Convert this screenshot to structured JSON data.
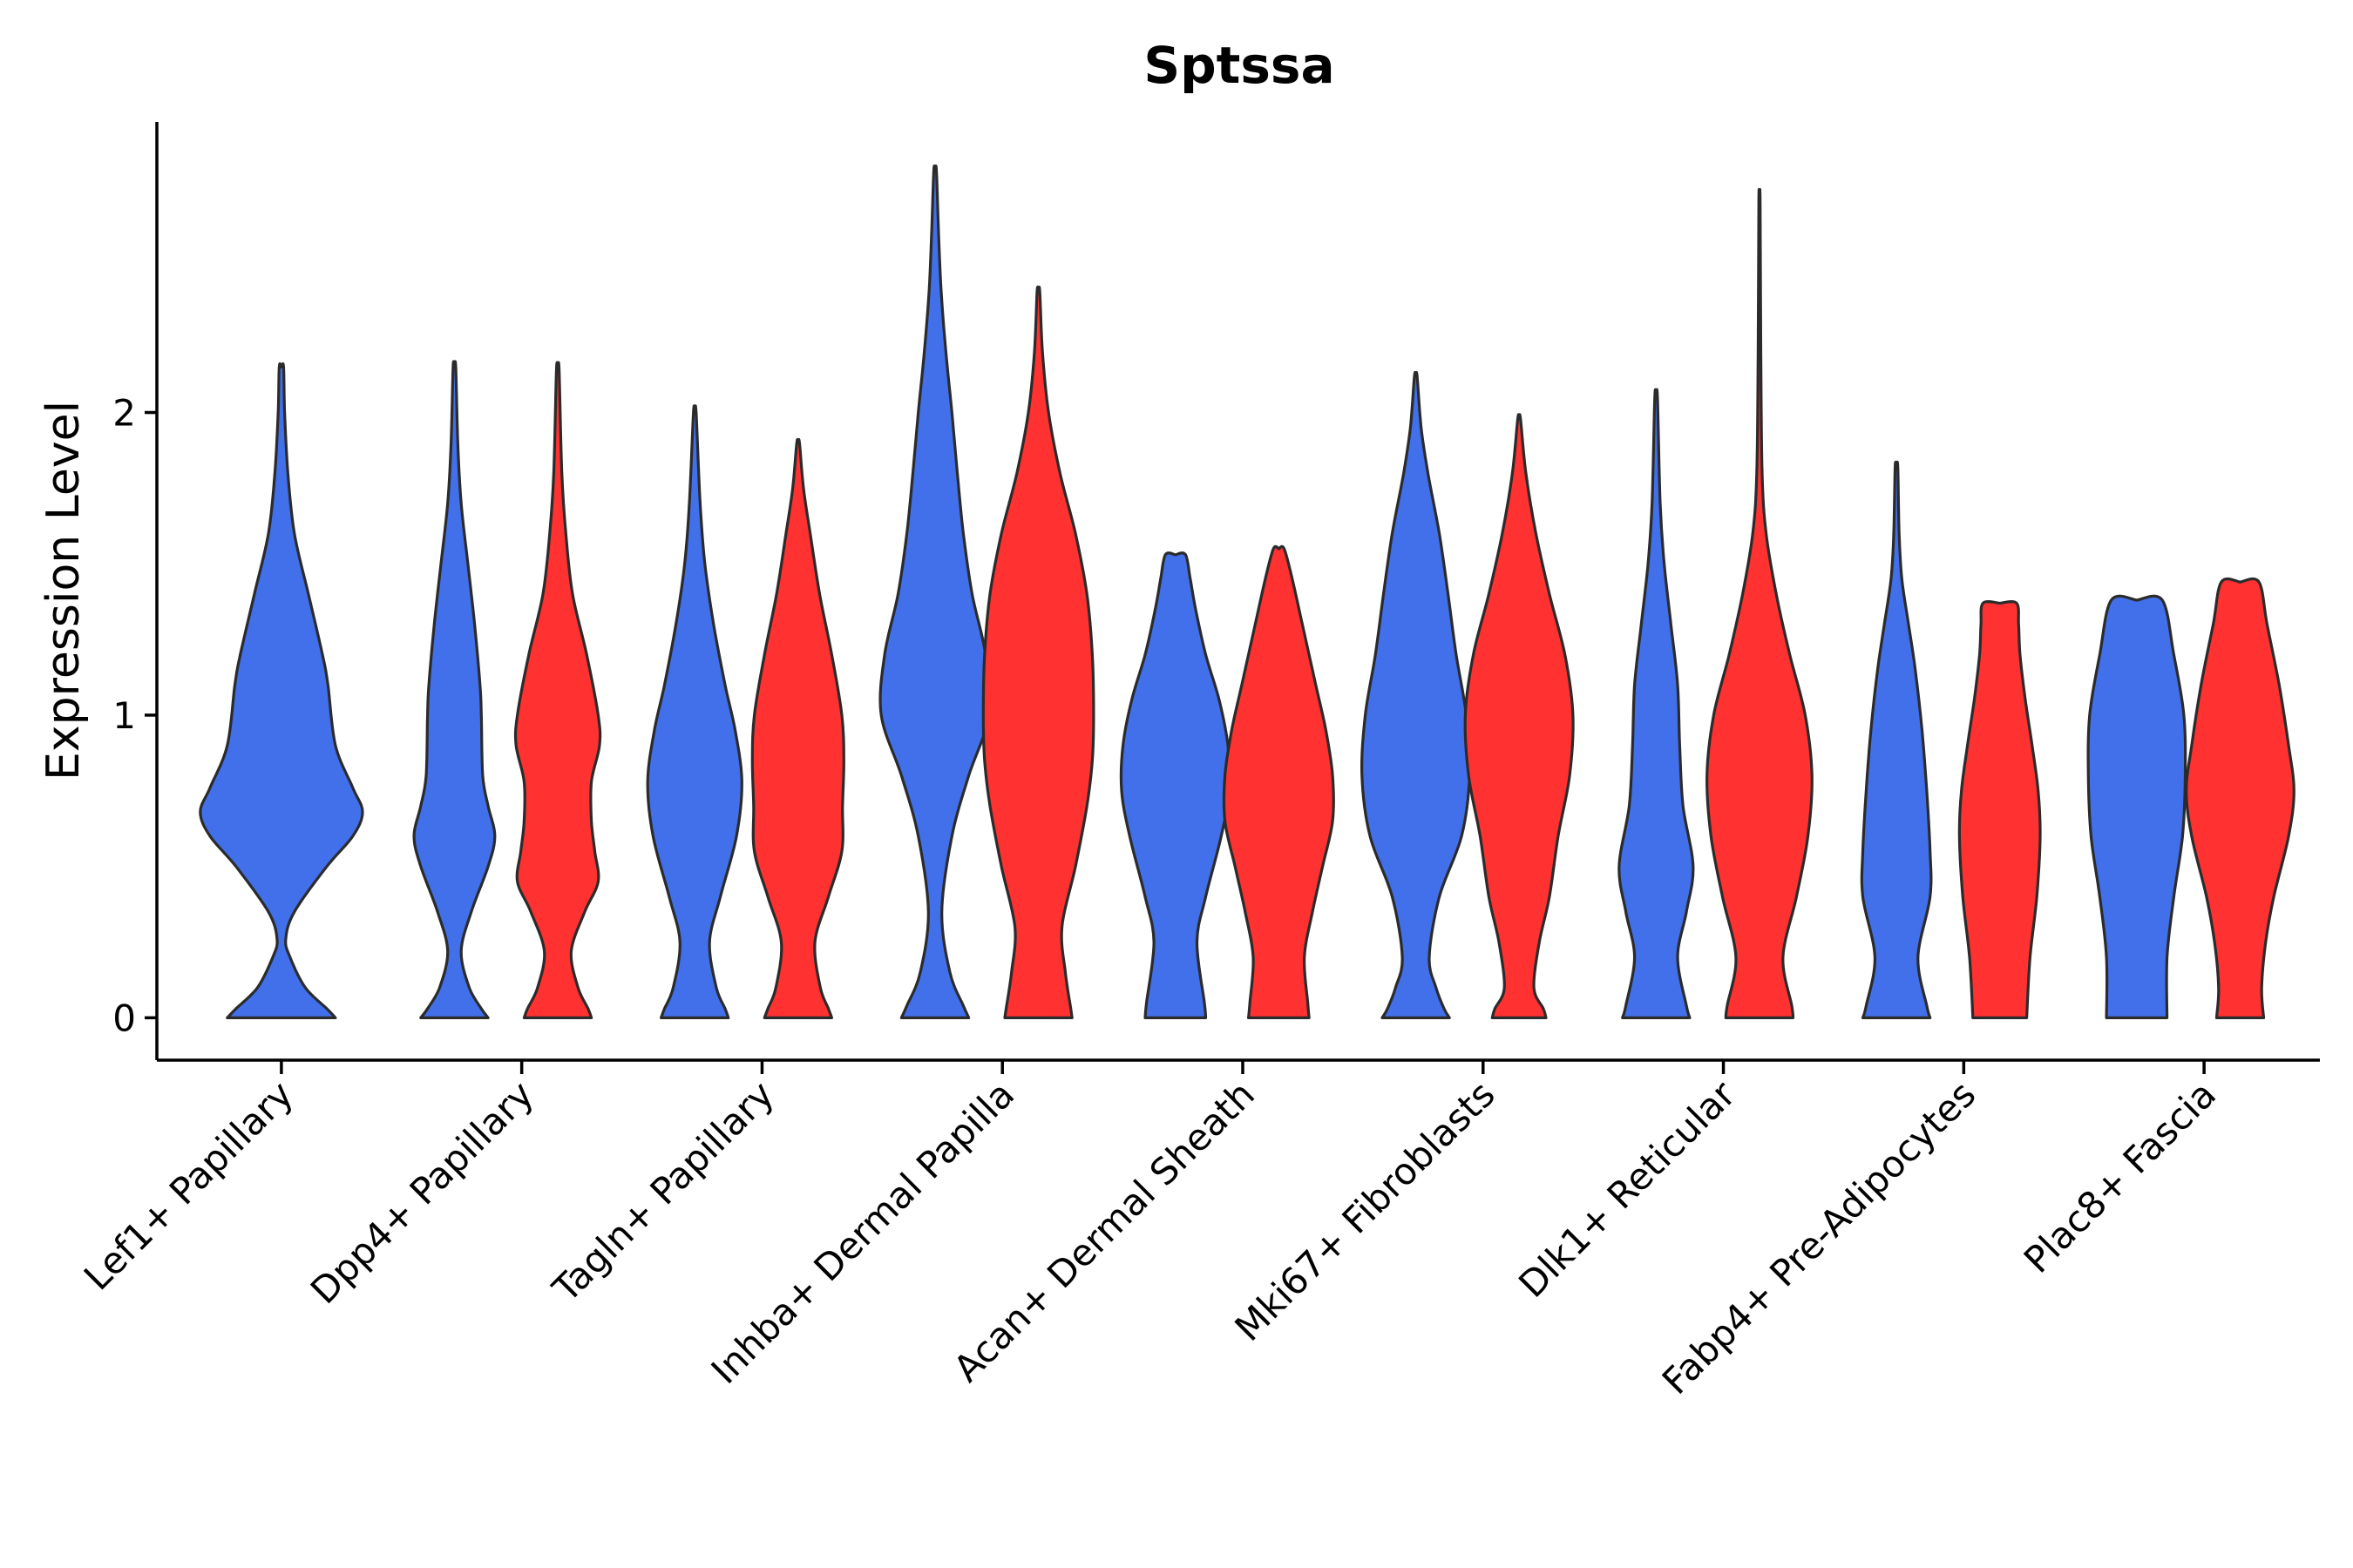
{
  "chart_data": {
    "type": "violin",
    "title": "Sptssa",
    "xlabel": "",
    "ylabel": "Expression Level",
    "ylim": [
      -0.14,
      2.96
    ],
    "yticks": [
      0,
      1,
      2
    ],
    "colors": {
      "group1": "#4270EA",
      "group2": "#FF3131"
    },
    "categories": [
      "Lef1+ Papillary",
      "Dpp4+ Papillary",
      "Tagln+ Papillary",
      "Inhba+ Dermal Papilla",
      "Acan+ Dermal Sheath",
      "Mki67+ Fibroblasts",
      "Dlk1+ Reticular",
      "Fabp4+ Pre-Adipocytes",
      "Plac8+ Fascia"
    ],
    "violins": [
      {
        "category": "Lef1+ Papillary",
        "group": "group1",
        "max": 2.15,
        "profile": [
          [
            0,
            0.5
          ],
          [
            0.03,
            0.42
          ],
          [
            0.1,
            0.22
          ],
          [
            0.2,
            0.08
          ],
          [
            0.26,
            0.04
          ],
          [
            0.35,
            0.12
          ],
          [
            0.5,
            0.42
          ],
          [
            0.6,
            0.66
          ],
          [
            0.68,
            0.75
          ],
          [
            0.76,
            0.66
          ],
          [
            0.9,
            0.5
          ],
          [
            1.1,
            0.43
          ],
          [
            1.2,
            0.38
          ],
          [
            1.4,
            0.25
          ],
          [
            1.6,
            0.12
          ],
          [
            1.8,
            0.06
          ],
          [
            2.0,
            0.03
          ],
          [
            2.15,
            0.02
          ]
        ]
      },
      {
        "category": "Dpp4+ Papillary",
        "group": "group1",
        "max": 2.15,
        "profile": [
          [
            0,
            0.5
          ],
          [
            0.03,
            0.4
          ],
          [
            0.1,
            0.22
          ],
          [
            0.22,
            0.1
          ],
          [
            0.35,
            0.25
          ],
          [
            0.5,
            0.5
          ],
          [
            0.6,
            0.6
          ],
          [
            0.7,
            0.5
          ],
          [
            0.8,
            0.42
          ],
          [
            1.0,
            0.4
          ],
          [
            1.1,
            0.38
          ],
          [
            1.3,
            0.3
          ],
          [
            1.5,
            0.2
          ],
          [
            1.7,
            0.1
          ],
          [
            1.9,
            0.05
          ],
          [
            2.15,
            0.02
          ]
        ]
      },
      {
        "category": "Dpp4+ Papillary",
        "group": "group2",
        "max": 2.14,
        "profile": [
          [
            0,
            0.5
          ],
          [
            0.03,
            0.45
          ],
          [
            0.1,
            0.3
          ],
          [
            0.22,
            0.2
          ],
          [
            0.35,
            0.4
          ],
          [
            0.45,
            0.6
          ],
          [
            0.55,
            0.55
          ],
          [
            0.65,
            0.5
          ],
          [
            0.78,
            0.5
          ],
          [
            0.9,
            0.62
          ],
          [
            1.0,
            0.6
          ],
          [
            1.2,
            0.43
          ],
          [
            1.4,
            0.22
          ],
          [
            1.6,
            0.12
          ],
          [
            1.8,
            0.06
          ],
          [
            2.14,
            0.02
          ]
        ]
      },
      {
        "category": "Tagln+ Papillary",
        "group": "group1",
        "max": 2.0,
        "profile": [
          [
            0,
            0.5
          ],
          [
            0.03,
            0.45
          ],
          [
            0.1,
            0.32
          ],
          [
            0.25,
            0.22
          ],
          [
            0.4,
            0.38
          ],
          [
            0.6,
            0.62
          ],
          [
            0.78,
            0.7
          ],
          [
            0.95,
            0.6
          ],
          [
            1.1,
            0.45
          ],
          [
            1.3,
            0.28
          ],
          [
            1.5,
            0.15
          ],
          [
            1.7,
            0.08
          ],
          [
            2.0,
            0.02
          ]
        ]
      },
      {
        "category": "Tagln+ Papillary",
        "group": "group2",
        "max": 1.9,
        "profile": [
          [
            0,
            0.5
          ],
          [
            0.03,
            0.45
          ],
          [
            0.1,
            0.33
          ],
          [
            0.25,
            0.25
          ],
          [
            0.4,
            0.45
          ],
          [
            0.55,
            0.65
          ],
          [
            0.7,
            0.66
          ],
          [
            0.85,
            0.68
          ],
          [
            1.0,
            0.65
          ],
          [
            1.2,
            0.5
          ],
          [
            1.4,
            0.32
          ],
          [
            1.6,
            0.18
          ],
          [
            1.75,
            0.08
          ],
          [
            1.9,
            0.02
          ]
        ]
      },
      {
        "category": "Inhba+ Dermal Papilla",
        "group": "group1",
        "max": 2.8,
        "profile": [
          [
            0,
            0.5
          ],
          [
            0.04,
            0.42
          ],
          [
            0.15,
            0.22
          ],
          [
            0.35,
            0.1
          ],
          [
            0.6,
            0.25
          ],
          [
            0.8,
            0.5
          ],
          [
            1.0,
            0.8
          ],
          [
            1.2,
            0.75
          ],
          [
            1.4,
            0.55
          ],
          [
            1.6,
            0.42
          ],
          [
            1.8,
            0.33
          ],
          [
            2.0,
            0.25
          ],
          [
            2.2,
            0.16
          ],
          [
            2.4,
            0.09
          ],
          [
            2.6,
            0.05
          ],
          [
            2.8,
            0.02
          ]
        ]
      },
      {
        "category": "Inhba+ Dermal Papilla",
        "group": "group2",
        "max": 2.4,
        "profile": [
          [
            0,
            0.5
          ],
          [
            0.03,
            0.48
          ],
          [
            0.15,
            0.4
          ],
          [
            0.3,
            0.35
          ],
          [
            0.5,
            0.55
          ],
          [
            0.7,
            0.72
          ],
          [
            0.85,
            0.8
          ],
          [
            1.0,
            0.82
          ],
          [
            1.2,
            0.8
          ],
          [
            1.4,
            0.72
          ],
          [
            1.6,
            0.55
          ],
          [
            1.8,
            0.32
          ],
          [
            2.0,
            0.15
          ],
          [
            2.2,
            0.06
          ],
          [
            2.4,
            0.02
          ]
        ]
      },
      {
        "category": "Acan+ Dermal Sheath",
        "group": "group1",
        "max": 1.53,
        "profile": [
          [
            0,
            0.45
          ],
          [
            0.05,
            0.43
          ],
          [
            0.25,
            0.32
          ],
          [
            0.4,
            0.45
          ],
          [
            0.6,
            0.68
          ],
          [
            0.75,
            0.8
          ],
          [
            0.9,
            0.78
          ],
          [
            1.05,
            0.65
          ],
          [
            1.2,
            0.45
          ],
          [
            1.35,
            0.3
          ],
          [
            1.45,
            0.22
          ],
          [
            1.53,
            0.15
          ]
        ]
      },
      {
        "category": "Acan+ Dermal Sheath",
        "group": "group2",
        "max": 1.55,
        "profile": [
          [
            0,
            0.45
          ],
          [
            0.05,
            0.43
          ],
          [
            0.2,
            0.38
          ],
          [
            0.35,
            0.5
          ],
          [
            0.5,
            0.65
          ],
          [
            0.65,
            0.8
          ],
          [
            0.8,
            0.8
          ],
          [
            0.95,
            0.7
          ],
          [
            1.1,
            0.55
          ],
          [
            1.3,
            0.35
          ],
          [
            1.45,
            0.2
          ],
          [
            1.55,
            0.08
          ]
        ]
      },
      {
        "category": "Mki67+ Fibroblasts",
        "group": "group1",
        "max": 2.12,
        "profile": [
          [
            0,
            0.5
          ],
          [
            0.03,
            0.42
          ],
          [
            0.1,
            0.3
          ],
          [
            0.2,
            0.2
          ],
          [
            0.4,
            0.35
          ],
          [
            0.6,
            0.68
          ],
          [
            0.8,
            0.8
          ],
          [
            1.0,
            0.75
          ],
          [
            1.2,
            0.6
          ],
          [
            1.4,
            0.48
          ],
          [
            1.6,
            0.35
          ],
          [
            1.8,
            0.18
          ],
          [
            1.95,
            0.08
          ],
          [
            2.12,
            0.02
          ]
        ]
      },
      {
        "category": "Mki67+ Fibroblasts",
        "group": "group2",
        "max": 1.98,
        "profile": [
          [
            0,
            0.4
          ],
          [
            0.03,
            0.36
          ],
          [
            0.1,
            0.22
          ],
          [
            0.25,
            0.3
          ],
          [
            0.4,
            0.45
          ],
          [
            0.6,
            0.58
          ],
          [
            0.8,
            0.75
          ],
          [
            1.0,
            0.8
          ],
          [
            1.2,
            0.68
          ],
          [
            1.4,
            0.45
          ],
          [
            1.6,
            0.25
          ],
          [
            1.8,
            0.1
          ],
          [
            1.98,
            0.02
          ]
        ]
      },
      {
        "category": "Dlk1+ Reticular",
        "group": "group1",
        "max": 2.05,
        "profile": [
          [
            0,
            0.5
          ],
          [
            0.04,
            0.45
          ],
          [
            0.2,
            0.32
          ],
          [
            0.35,
            0.45
          ],
          [
            0.5,
            0.55
          ],
          [
            0.7,
            0.4
          ],
          [
            0.9,
            0.35
          ],
          [
            1.1,
            0.32
          ],
          [
            1.3,
            0.22
          ],
          [
            1.5,
            0.12
          ],
          [
            1.7,
            0.06
          ],
          [
            2.05,
            0.02
          ]
        ]
      },
      {
        "category": "Dlk1+ Reticular",
        "group": "group2",
        "max": 2.7,
        "profile": [
          [
            0,
            0.5
          ],
          [
            0.04,
            0.48
          ],
          [
            0.2,
            0.35
          ],
          [
            0.4,
            0.55
          ],
          [
            0.6,
            0.72
          ],
          [
            0.8,
            0.78
          ],
          [
            1.0,
            0.68
          ],
          [
            1.2,
            0.45
          ],
          [
            1.4,
            0.25
          ],
          [
            1.6,
            0.1
          ],
          [
            1.8,
            0.04
          ],
          [
            2.2,
            0.02
          ],
          [
            2.7,
            0.01
          ]
        ]
      },
      {
        "category": "Fabp4+ Pre-Adipocytes",
        "group": "group1",
        "max": 1.82,
        "profile": [
          [
            0,
            0.5
          ],
          [
            0.04,
            0.45
          ],
          [
            0.2,
            0.32
          ],
          [
            0.4,
            0.5
          ],
          [
            0.55,
            0.5
          ],
          [
            0.75,
            0.45
          ],
          [
            0.95,
            0.38
          ],
          [
            1.15,
            0.28
          ],
          [
            1.3,
            0.18
          ],
          [
            1.45,
            0.08
          ],
          [
            1.6,
            0.04
          ],
          [
            1.82,
            0.02
          ]
        ]
      },
      {
        "category": "Fabp4+ Pre-Adipocytes",
        "group": "group2",
        "max": 1.37,
        "profile": [
          [
            0,
            0.4
          ],
          [
            0.2,
            0.45
          ],
          [
            0.4,
            0.55
          ],
          [
            0.6,
            0.6
          ],
          [
            0.75,
            0.57
          ],
          [
            0.9,
            0.48
          ],
          [
            1.05,
            0.38
          ],
          [
            1.2,
            0.3
          ],
          [
            1.3,
            0.28
          ],
          [
            1.37,
            0.25
          ]
        ]
      },
      {
        "category": "Plac8+ Fascia",
        "group": "group1",
        "max": 1.38,
        "profile": [
          [
            0,
            0.45
          ],
          [
            0.2,
            0.45
          ],
          [
            0.4,
            0.55
          ],
          [
            0.6,
            0.68
          ],
          [
            0.8,
            0.72
          ],
          [
            1.0,
            0.7
          ],
          [
            1.2,
            0.55
          ],
          [
            1.38,
            0.38
          ]
        ]
      },
      {
        "category": "Plac8+ Fascia",
        "group": "group2",
        "max": 1.44,
        "profile": [
          [
            0,
            0.35
          ],
          [
            0.1,
            0.32
          ],
          [
            0.25,
            0.38
          ],
          [
            0.4,
            0.5
          ],
          [
            0.6,
            0.72
          ],
          [
            0.75,
            0.8
          ],
          [
            0.9,
            0.72
          ],
          [
            1.1,
            0.58
          ],
          [
            1.3,
            0.4
          ],
          [
            1.44,
            0.28
          ]
        ]
      }
    ]
  }
}
